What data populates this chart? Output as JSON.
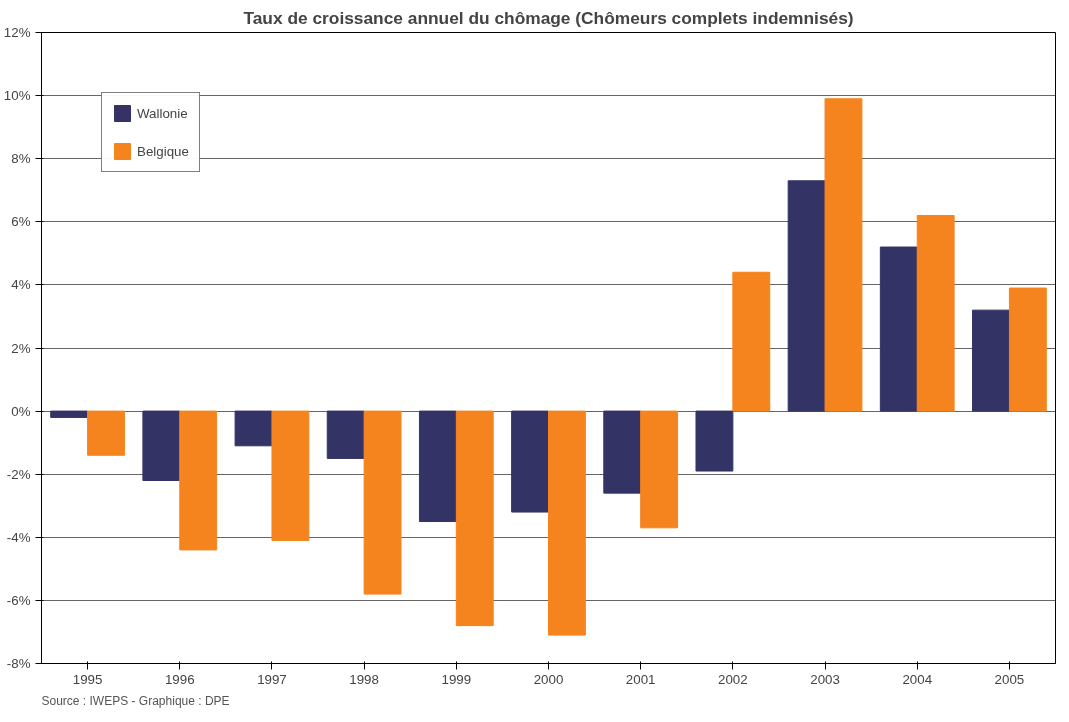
{
  "chart_data": {
    "type": "bar",
    "title": "Taux de croissance annuel du chômage (Chômeurs complets indemnisés)",
    "categories": [
      "1995",
      "1996",
      "1997",
      "1998",
      "1999",
      "2000",
      "2001",
      "2002",
      "2003",
      "2004",
      "2005"
    ],
    "series": [
      {
        "name": "Wallonie",
        "color": "#333366",
        "values": [
          -0.2,
          -2.2,
          -1.1,
          -1.5,
          -3.5,
          -3.2,
          -2.6,
          -1.9,
          7.3,
          5.2,
          3.2
        ]
      },
      {
        "name": "Belgique",
        "color": "#f5841f",
        "values": [
          -1.4,
          -4.4,
          -4.1,
          -5.8,
          -6.8,
          -7.1,
          -3.7,
          4.4,
          9.9,
          6.2,
          3.9
        ]
      }
    ],
    "ylim": [
      -8,
      12
    ],
    "yticks": [
      {
        "value": -8,
        "label": "-8%"
      },
      {
        "value": -6,
        "label": "-6%"
      },
      {
        "value": -4,
        "label": "-4%"
      },
      {
        "value": -2,
        "label": "-2%"
      },
      {
        "value": 0,
        "label": "0%"
      },
      {
        "value": 2,
        "label": "2%"
      },
      {
        "value": 4,
        "label": "4%"
      },
      {
        "value": 6,
        "label": "6%"
      },
      {
        "value": 8,
        "label": "8%"
      },
      {
        "value": 10,
        "label": "10%"
      },
      {
        "value": 12,
        "label": "12%"
      }
    ],
    "grid": "y",
    "legend": "top left",
    "annotations": [
      "Source : IWEPS - Graphique : DPE"
    ]
  }
}
